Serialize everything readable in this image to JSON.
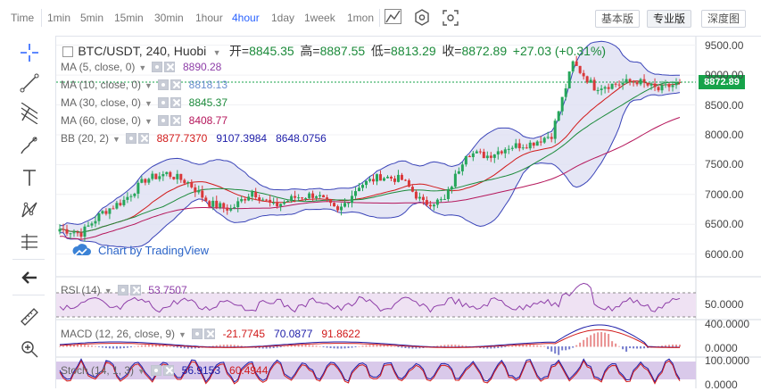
{
  "topbar": {
    "timeframes": [
      "Time",
      "1min",
      "5min",
      "15min",
      "30min",
      "1hour",
      "4hour",
      "1day",
      "1week",
      "1mon"
    ],
    "active_timeframe": "4hour",
    "modes": [
      "基本版",
      "专业版",
      "深度图"
    ],
    "active_mode": "专业版"
  },
  "left_tools": [
    "crosshair-icon",
    "trendline-icon",
    "fib-icon",
    "brush-icon",
    "text-icon",
    "pattern-icon",
    "measure-lines-icon",
    "back-arrow-icon",
    "ruler-icon",
    "zoom-icon"
  ],
  "symbol": {
    "title": "BTC/USDT, 240, Huobi",
    "open_label": "开=",
    "open": "8845.35",
    "high_label": "高=",
    "high": "8887.55",
    "low_label": "低=",
    "low": "8813.29",
    "close_label": "收=",
    "close": "8872.89",
    "change": "+27.03 (+0.31%)"
  },
  "indicators": [
    {
      "label": "MA (5, close, 0)",
      "values": [
        "8890.28"
      ],
      "colors": [
        "#8e3ea8"
      ]
    },
    {
      "label": "MA (10, close, 0)",
      "values": [
        "8818.13"
      ],
      "colors": [
        "#6a8fcf"
      ]
    },
    {
      "label": "MA (30, close, 0)",
      "values": [
        "8845.37"
      ],
      "colors": [
        "#1b8a3a"
      ]
    },
    {
      "label": "MA (60, close, 0)",
      "values": [
        "8408.77"
      ],
      "colors": [
        "#b5165b"
      ]
    },
    {
      "label": "BB (20, 2)",
      "values": [
        "8877.7370",
        "9107.3984",
        "8648.0756"
      ],
      "colors": [
        "#d11a1a",
        "#1c1ca8",
        "#1c1ca8"
      ]
    }
  ],
  "rsi": {
    "label": "RSI (14)",
    "value": "53.7507",
    "color": "#8e3ea8"
  },
  "macd": {
    "label": "MACD (12, 26, close, 9)",
    "values": [
      "-21.7745",
      "70.0877",
      "91.8622"
    ],
    "colors": [
      "#d11a1a",
      "#1c1ca8",
      "#d11a1a"
    ]
  },
  "stoch": {
    "label": "Stoch (14, 1, 3)",
    "values": [
      "56.9153",
      "60.4944"
    ],
    "colors": [
      "#1c1ca8",
      "#d11a1a"
    ]
  },
  "price_axis": [
    "9500.00",
    "9000.00",
    "8500.00",
    "8000.00",
    "7500.00",
    "7000.00",
    "6500.00",
    "6000.00"
  ],
  "rsi_axis": [
    "50.0000"
  ],
  "macd_axis": [
    "400.0000",
    "0.0000"
  ],
  "stoch_axis": [
    "100.0000",
    "0.0000"
  ],
  "last_price": "8872.89",
  "watermark": "Chart by TradingView",
  "colors": {
    "up": "#26a65b",
    "down": "#d9383a",
    "bb_fill": "#dfe0f3",
    "bb_line": "#3a44b8",
    "accent": "#2962ff"
  },
  "chart_data": {
    "type": "candlestick",
    "price_close_path": [
      6420,
      6350,
      6700,
      6900,
      7250,
      7350,
      7200,
      6850,
      6750,
      7050,
      6800,
      6950,
      7000,
      6700,
      7150,
      7300,
      7250,
      6850,
      6900,
      7700,
      7650,
      7800,
      7850,
      8000,
      9200,
      8800,
      8850,
      8900,
      8750,
      8872.89
    ],
    "ylim": [
      5800,
      9600
    ]
  }
}
